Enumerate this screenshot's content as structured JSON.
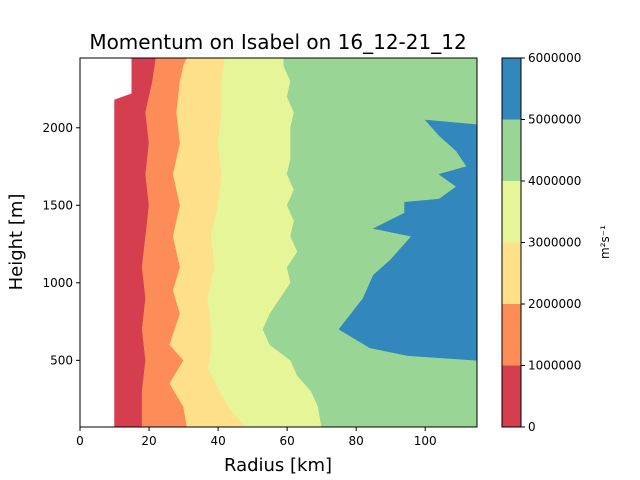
{
  "chart_data": {
    "type": "filled-contour",
    "title": "Momentum on Isabel on 16_12-21_12",
    "xlabel": "Radius [km]",
    "ylabel": "Height [m]",
    "xlim": [
      0,
      115
    ],
    "ylim": [
      70,
      2450
    ],
    "xticks": [
      0,
      20,
      40,
      60,
      80,
      100
    ],
    "yticks": [
      500,
      1000,
      1500,
      2000
    ],
    "colorbar": {
      "label": "m²s⁻¹",
      "levels": [
        0,
        1000000,
        2000000,
        3000000,
        4000000,
        5000000,
        6000000
      ],
      "tick_labels": [
        "0",
        "1000000",
        "2000000",
        "3000000",
        "4000000",
        "5000000",
        "6000000"
      ],
      "colors": [
        "#d53e4f",
        "#fc8d59",
        "#fee08b",
        "#e6f598",
        "#99d594",
        "#3288bd"
      ]
    },
    "contour_boundaries": [
      {
        "level": 0,
        "points": [
          [
            10,
            70
          ],
          [
            10,
            2180
          ],
          [
            15,
            2220
          ],
          [
            15,
            2450
          ]
        ]
      },
      {
        "level": 1000000,
        "points": [
          [
            18,
            70
          ],
          [
            18,
            300
          ],
          [
            19,
            500
          ],
          [
            18,
            700
          ],
          [
            19,
            900
          ],
          [
            18,
            1100
          ],
          [
            19,
            1300
          ],
          [
            20,
            1500
          ],
          [
            19,
            1700
          ],
          [
            20,
            1900
          ],
          [
            19,
            2100
          ],
          [
            21,
            2300
          ],
          [
            22,
            2450
          ]
        ]
      },
      {
        "level": 2000000,
        "points": [
          [
            31,
            70
          ],
          [
            30,
            200
          ],
          [
            26,
            350
          ],
          [
            30,
            500
          ],
          [
            26,
            600
          ],
          [
            29,
            800
          ],
          [
            27,
            950
          ],
          [
            29,
            1100
          ],
          [
            27,
            1300
          ],
          [
            29,
            1500
          ],
          [
            27,
            1700
          ],
          [
            29,
            1900
          ],
          [
            28,
            2100
          ],
          [
            29,
            2300
          ],
          [
            30,
            2400
          ],
          [
            31,
            2450
          ]
        ]
      },
      {
        "level": 3000000,
        "points": [
          [
            48,
            70
          ],
          [
            43,
            200
          ],
          [
            40,
            320
          ],
          [
            37,
            450
          ],
          [
            38,
            550
          ],
          [
            38,
            700
          ],
          [
            37,
            900
          ],
          [
            39,
            1100
          ],
          [
            38,
            1300
          ],
          [
            40,
            1500
          ],
          [
            41,
            1700
          ],
          [
            40,
            1900
          ],
          [
            41,
            2100
          ],
          [
            41,
            2300
          ],
          [
            42,
            2450
          ]
        ]
      },
      {
        "level": 4000000,
        "points": [
          [
            70,
            70
          ],
          [
            69,
            200
          ],
          [
            67,
            300
          ],
          [
            63,
            400
          ],
          [
            61,
            500
          ],
          [
            55,
            600
          ],
          [
            53,
            700
          ],
          [
            55,
            800
          ],
          [
            58,
            900
          ],
          [
            61,
            1000
          ],
          [
            60,
            1100
          ],
          [
            63,
            1200
          ],
          [
            61,
            1300
          ],
          [
            62,
            1400
          ],
          [
            60,
            1500
          ],
          [
            62,
            1600
          ],
          [
            60,
            1700
          ],
          [
            61,
            1800
          ],
          [
            61,
            1900
          ],
          [
            61,
            2000
          ],
          [
            62,
            2100
          ],
          [
            60,
            2200
          ],
          [
            61,
            2300
          ],
          [
            59,
            2400
          ],
          [
            59,
            2450
          ]
        ]
      },
      {
        "level": 5000000,
        "points": [
          [
            115,
            70
          ],
          [
            115,
            2020
          ],
          [
            100,
            2050
          ],
          [
            104,
            1950
          ],
          [
            109,
            1850
          ],
          [
            112,
            1750
          ],
          [
            104,
            1700
          ],
          [
            109,
            1620
          ],
          [
            104,
            1540
          ],
          [
            94,
            1520
          ],
          [
            94,
            1450
          ],
          [
            85,
            1350
          ],
          [
            96,
            1300
          ],
          [
            90,
            1150
          ],
          [
            85,
            1050
          ],
          [
            82,
            900
          ],
          [
            75,
            700
          ],
          [
            84,
            580
          ],
          [
            95,
            530
          ],
          [
            115,
            500
          ],
          [
            115,
            70
          ]
        ]
      }
    ]
  }
}
